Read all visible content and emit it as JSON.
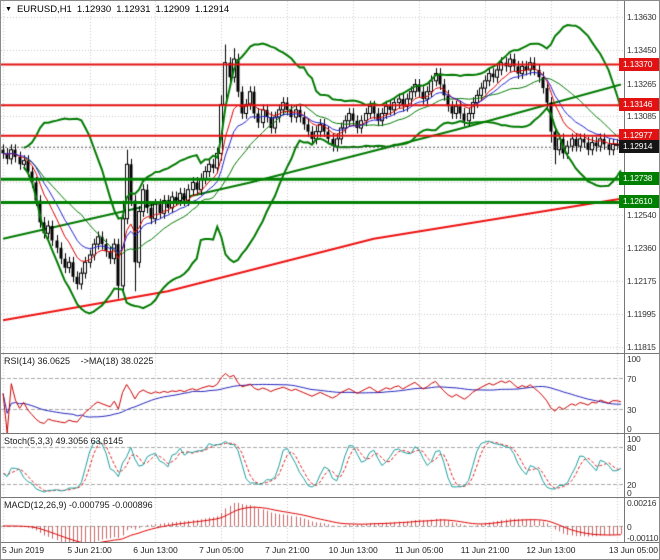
{
  "header": {
    "menu_icon": "▼",
    "symbol": "EURUSD,H1",
    "open": "1.12930",
    "high": "1.12931",
    "low": "1.12909",
    "close": "1.12914"
  },
  "panels": {
    "rsi": {
      "name": "RSI(14)",
      "value": "36.0625",
      "ma_name": "->MA(18)",
      "ma_value": "38.0225",
      "axis": [
        {
          "label": "100",
          "value": 100
        },
        {
          "label": "70",
          "value": 70
        },
        {
          "label": "30",
          "value": 30
        },
        {
          "label": "0",
          "value": 0
        }
      ],
      "levels": [
        70,
        30
      ],
      "range": [
        0,
        100
      ]
    },
    "stoch": {
      "name": "Stoch(5,3,3)",
      "k_value": "49.3056",
      "d_value": "63.6145",
      "axis": [
        {
          "label": "100",
          "value": 100
        },
        {
          "label": "80",
          "value": 80
        },
        {
          "label": "20",
          "value": 20
        },
        {
          "label": "0",
          "value": 0
        }
      ],
      "levels": [
        80,
        20
      ],
      "range": [
        0,
        100
      ]
    },
    "macd": {
      "name": "MACD(12,26,9)",
      "main_value": "-0.000795",
      "signal_value": "-0.000896",
      "axis": [
        {
          "label": "0.00216",
          "value": 0.00216
        },
        {
          "label": "0",
          "value": 0
        },
        {
          "label": "-0.00110",
          "value": -0.0011
        }
      ],
      "levels": [
        0
      ]
    }
  },
  "price_axis": {
    "ticks": [
      {
        "label": "1.13630",
        "price": 1.1363
      },
      {
        "label": "1.13450",
        "price": 1.1345
      },
      {
        "label": "1.13265",
        "price": 1.13265
      },
      {
        "label": "1.13085",
        "price": 1.13085
      },
      {
        "label": "1.12540",
        "price": 1.1254
      },
      {
        "label": "1.12360",
        "price": 1.1236
      },
      {
        "label": "1.12175",
        "price": 1.12175
      },
      {
        "label": "1.11995",
        "price": 1.11995
      },
      {
        "label": "1.11815",
        "price": 1.11815
      }
    ],
    "flags": [
      {
        "label": "1.13370",
        "price": 1.1337,
        "type": "resistance"
      },
      {
        "label": "1.13146",
        "price": 1.13146,
        "type": "resistance"
      },
      {
        "label": "1.12977",
        "price": 1.12977,
        "type": "resistance"
      },
      {
        "label": "1.12914",
        "price": 1.12914,
        "type": "bid"
      },
      {
        "label": "1.12738",
        "price": 1.12738,
        "type": "support"
      },
      {
        "label": "1.12610",
        "price": 1.1261,
        "type": "support"
      }
    ]
  },
  "chart_data": {
    "type": "candlestick",
    "title": "EURUSD,H1",
    "symbol": "EURUSD",
    "timeframe": "H1",
    "price_unit": 0.0001,
    "main_range": [
      1.1178,
      1.1372
    ],
    "macd_range": [
      -0.00135,
      0.00235
    ],
    "first_open": 11290,
    "close": [
      11288,
      11285,
      11290,
      11286,
      11282,
      11284,
      11278,
      11272,
      11262,
      11250,
      11244,
      11248,
      11240,
      11236,
      11230,
      11225,
      11228,
      11220,
      11216,
      11222,
      11228,
      11232,
      11238,
      11242,
      11238,
      11234,
      11230,
      11238,
      11215,
      11252,
      11282,
      11262,
      11228,
      11256,
      11268,
      11258,
      11252,
      11260,
      11255,
      11262,
      11258,
      11264,
      11262,
      11266,
      11262,
      11268,
      11272,
      11268,
      11274,
      11278,
      11282,
      11280,
      11288,
      11315,
      11338,
      11330,
      11340,
      11322,
      11310,
      11315,
      11322,
      11310,
      11305,
      11312,
      11308,
      11302,
      11308,
      11312,
      11316,
      11312,
      11308,
      11312,
      11308,
      11304,
      11300,
      11296,
      11300,
      11304,
      11300,
      11296,
      11292,
      11296,
      11302,
      11306,
      11310,
      11306,
      11302,
      11306,
      11310,
      11314,
      11310,
      11306,
      11310,
      11314,
      11312,
      11316,
      11318,
      11314,
      11318,
      11322,
      11326,
      11322,
      11318,
      11322,
      11328,
      11332,
      11326,
      11320,
      11314,
      11310,
      11314,
      11310,
      11306,
      11310,
      11316,
      11320,
      11324,
      11328,
      11332,
      11330,
      11334,
      11338,
      11336,
      11340,
      11336,
      11332,
      11336,
      11334,
      11338,
      11334,
      11330,
      11324,
      11316,
      11300,
      11290,
      11296,
      11288,
      11292,
      11296,
      11292,
      11296,
      11294,
      11290,
      11294,
      11292,
      11296,
      11293,
      11290,
      11293,
      11293,
      11291.4
    ],
    "high": [
      11293,
      11291,
      11293,
      11293,
      11289,
      11287,
      11287,
      11281,
      11275,
      11265,
      11253,
      11251,
      11251,
      11243,
      11239,
      11233,
      11231,
      11231,
      11223,
      11225,
      11231,
      11235,
      11241,
      11245,
      11245,
      11241,
      11237,
      11241,
      11241,
      11262,
      11290,
      11285,
      11265,
      11259,
      11271,
      11271,
      11261,
      11263,
      11263,
      11265,
      11265,
      11267,
      11267,
      11269,
      11269,
      11271,
      11275,
      11275,
      11277,
      11281,
      11285,
      11285,
      11291,
      11320,
      11348,
      11341,
      11346,
      11343,
      11325,
      11318,
      11325,
      11325,
      11313,
      11315,
      11315,
      11311,
      11311,
      11315,
      11319,
      11319,
      11315,
      11315,
      11315,
      11311,
      11307,
      11303,
      11303,
      11307,
      11307,
      11303,
      11299,
      11299,
      11305,
      11309,
      11313,
      11313,
      11309,
      11309,
      11313,
      11317,
      11317,
      11313,
      11313,
      11317,
      11317,
      11319,
      11321,
      11321,
      11321,
      11325,
      11329,
      11329,
      11325,
      11325,
      11331,
      11335,
      11335,
      11329,
      11323,
      11317,
      11317,
      11317,
      11313,
      11313,
      11319,
      11323,
      11327,
      11331,
      11335,
      11335,
      11337,
      11341,
      11341,
      11343,
      11343,
      11339,
      11339,
      11339,
      11341,
      11341,
      11337,
      11333,
      11327,
      11319,
      11303,
      11299,
      11299,
      11295,
      11299,
      11299,
      11299,
      11299,
      11297,
      11297,
      11297,
      11299,
      11299,
      11296,
      11296,
      11296,
      11293.1
    ],
    "low": [
      11285,
      11282,
      11282,
      11283,
      11279,
      11279,
      11275,
      11269,
      11259,
      11247,
      11241,
      11241,
      11237,
      11233,
      11227,
      11222,
      11222,
      11217,
      11213,
      11213,
      11219,
      11225,
      11229,
      11235,
      11235,
      11231,
      11227,
      11227,
      11208,
      11212,
      11249,
      11259,
      11212,
      11225,
      11253,
      11255,
      11249,
      11249,
      11252,
      11252,
      11255,
      11255,
      11259,
      11259,
      11259,
      11259,
      11265,
      11265,
      11265,
      11271,
      11275,
      11277,
      11277,
      11284,
      11312,
      11327,
      11327,
      11319,
      11307,
      11307,
      11312,
      11307,
      11302,
      11302,
      11305,
      11299,
      11299,
      11305,
      11309,
      11309,
      11305,
      11305,
      11305,
      11301,
      11297,
      11293,
      11293,
      11297,
      11297,
      11293,
      11289,
      11289,
      11293,
      11299,
      11303,
      11303,
      11299,
      11299,
      11303,
      11307,
      11307,
      11303,
      11303,
      11307,
      11309,
      11309,
      11313,
      11311,
      11311,
      11315,
      11319,
      11319,
      11315,
      11315,
      11319,
      11325,
      11323,
      11317,
      11311,
      11307,
      11307,
      11307,
      11303,
      11303,
      11307,
      11313,
      11317,
      11321,
      11325,
      11327,
      11327,
      11331,
      11333,
      11333,
      11333,
      11329,
      11329,
      11331,
      11331,
      11331,
      11327,
      11321,
      11313,
      11294,
      11282,
      11287,
      11285,
      11285,
      11289,
      11289,
      11289,
      11291,
      11287,
      11287,
      11289,
      11289,
      11290,
      11287,
      11287,
      11290,
      11290.9
    ],
    "time_axis": [
      {
        "label": "5 Jun 2019",
        "index": 0
      },
      {
        "label": "5 Jun 21:00",
        "index": 21
      },
      {
        "label": "6 Jun 13:00",
        "index": 37
      },
      {
        "label": "7 Jun 05:00",
        "index": 53
      },
      {
        "label": "7 Jun 21:00",
        "index": 69
      },
      {
        "label": "10 Jun 13:00",
        "index": 85
      },
      {
        "label": "11 Jun 05:00",
        "index": 101
      },
      {
        "label": "11 Jun 21:00",
        "index": 117
      },
      {
        "label": "12 Jun 13:00",
        "index": 133
      },
      {
        "label": "13 Jun 05:00",
        "index": 149
      }
    ],
    "grid_prices": [
      1.1363,
      1.1345,
      1.13265,
      1.13085,
      1.12905,
      1.1272,
      1.1254,
      1.1236,
      1.12175,
      1.11995,
      1.11815
    ],
    "trend_lines": [
      {
        "color": "#ee1111",
        "width": 2,
        "points": [
          [
            0,
            1.1196
          ],
          [
            40,
            1.1212
          ],
          [
            90,
            1.1241
          ],
          [
            150,
            1.1263
          ]
        ]
      },
      {
        "color": "#007a00",
        "width": 2,
        "points": [
          [
            0,
            1.1241
          ],
          [
            60,
            1.1272
          ],
          [
            110,
            1.1301
          ],
          [
            150,
            1.1326
          ]
        ]
      }
    ],
    "indicators": {
      "bb_period": 20,
      "bb_dev": 2,
      "ma_fast": 8,
      "ma_mid": 13,
      "rsi_period": 14,
      "rsi_ma_period": 18,
      "stoch": [
        5,
        3,
        3
      ],
      "macd": [
        12,
        26,
        9
      ]
    }
  },
  "colors": {
    "background": "#ffffff",
    "grid": "#c9c9c9",
    "level_dash": "#a8a8a8",
    "candle_up_fill": "#ffffff",
    "candle_down_fill": "#000000",
    "candle_border": "#000000",
    "bollinger": "#007a00",
    "ma_fast": "#dd0000",
    "ma_mid": "#2222cc",
    "resistance": "#e31212",
    "support": "#008000",
    "bid": "#555555",
    "rsi_line": "#cc0000",
    "rsi_ma": "#2222bb",
    "stoch_k": "#1f9e9e",
    "stoch_d": "#dd2222",
    "macd_bar": "#cc6666",
    "macd_signal": "#dd0000"
  }
}
